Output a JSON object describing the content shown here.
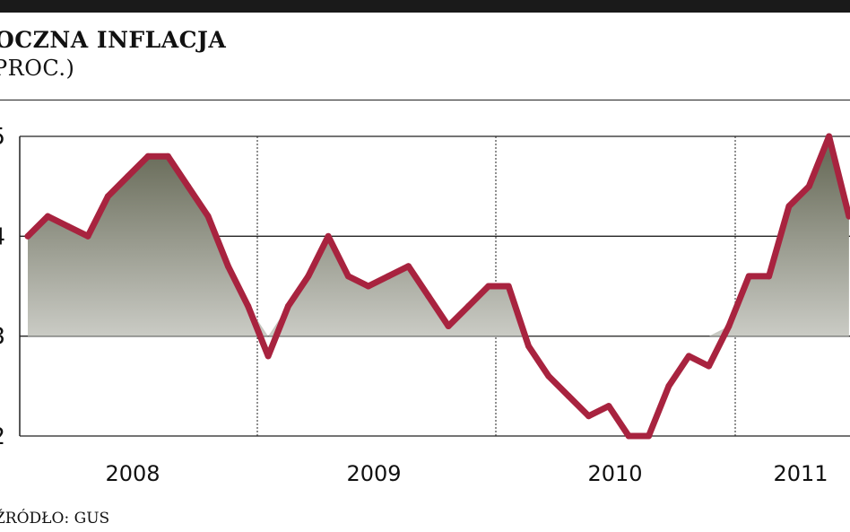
{
  "header": {
    "title": "OCZNA INFLACJA",
    "subtitle": "PROC.)"
  },
  "footer": {
    "source": "ŹRÓDŁO: GUS"
  },
  "colors": {
    "line": "#a8233f",
    "fill_top": "#6b6e5c",
    "fill_bottom": "#ffffff",
    "grid": "#222222"
  },
  "chart_data": {
    "type": "area",
    "xlabel": "",
    "ylabel": "",
    "title": "",
    "ylim": [
      2,
      5
    ],
    "y_ticks": [
      {
        "value": 2,
        "label": "2"
      },
      {
        "value": 3,
        "label": "3"
      },
      {
        "value": 4,
        "label": "4"
      },
      {
        "value": 5,
        "label": "5"
      }
    ],
    "year_labels": [
      "2008",
      "2009",
      "2010",
      "2011"
    ],
    "grid": true,
    "series": [
      {
        "values": [
          4.0,
          4.2,
          4.1,
          4.0,
          4.4,
          4.6,
          4.8,
          4.8,
          4.5,
          4.2,
          3.7,
          3.3,
          2.8,
          3.3,
          3.6,
          4.0,
          3.6,
          3.5,
          3.6,
          3.7,
          3.4,
          3.1,
          3.3,
          3.5,
          3.5,
          2.9,
          2.6,
          2.4,
          2.2,
          2.3,
          2.0,
          2.0,
          2.5,
          2.8,
          2.7,
          3.1,
          3.6,
          3.6,
          4.3,
          4.5,
          5.0,
          4.2
        ]
      }
    ]
  }
}
